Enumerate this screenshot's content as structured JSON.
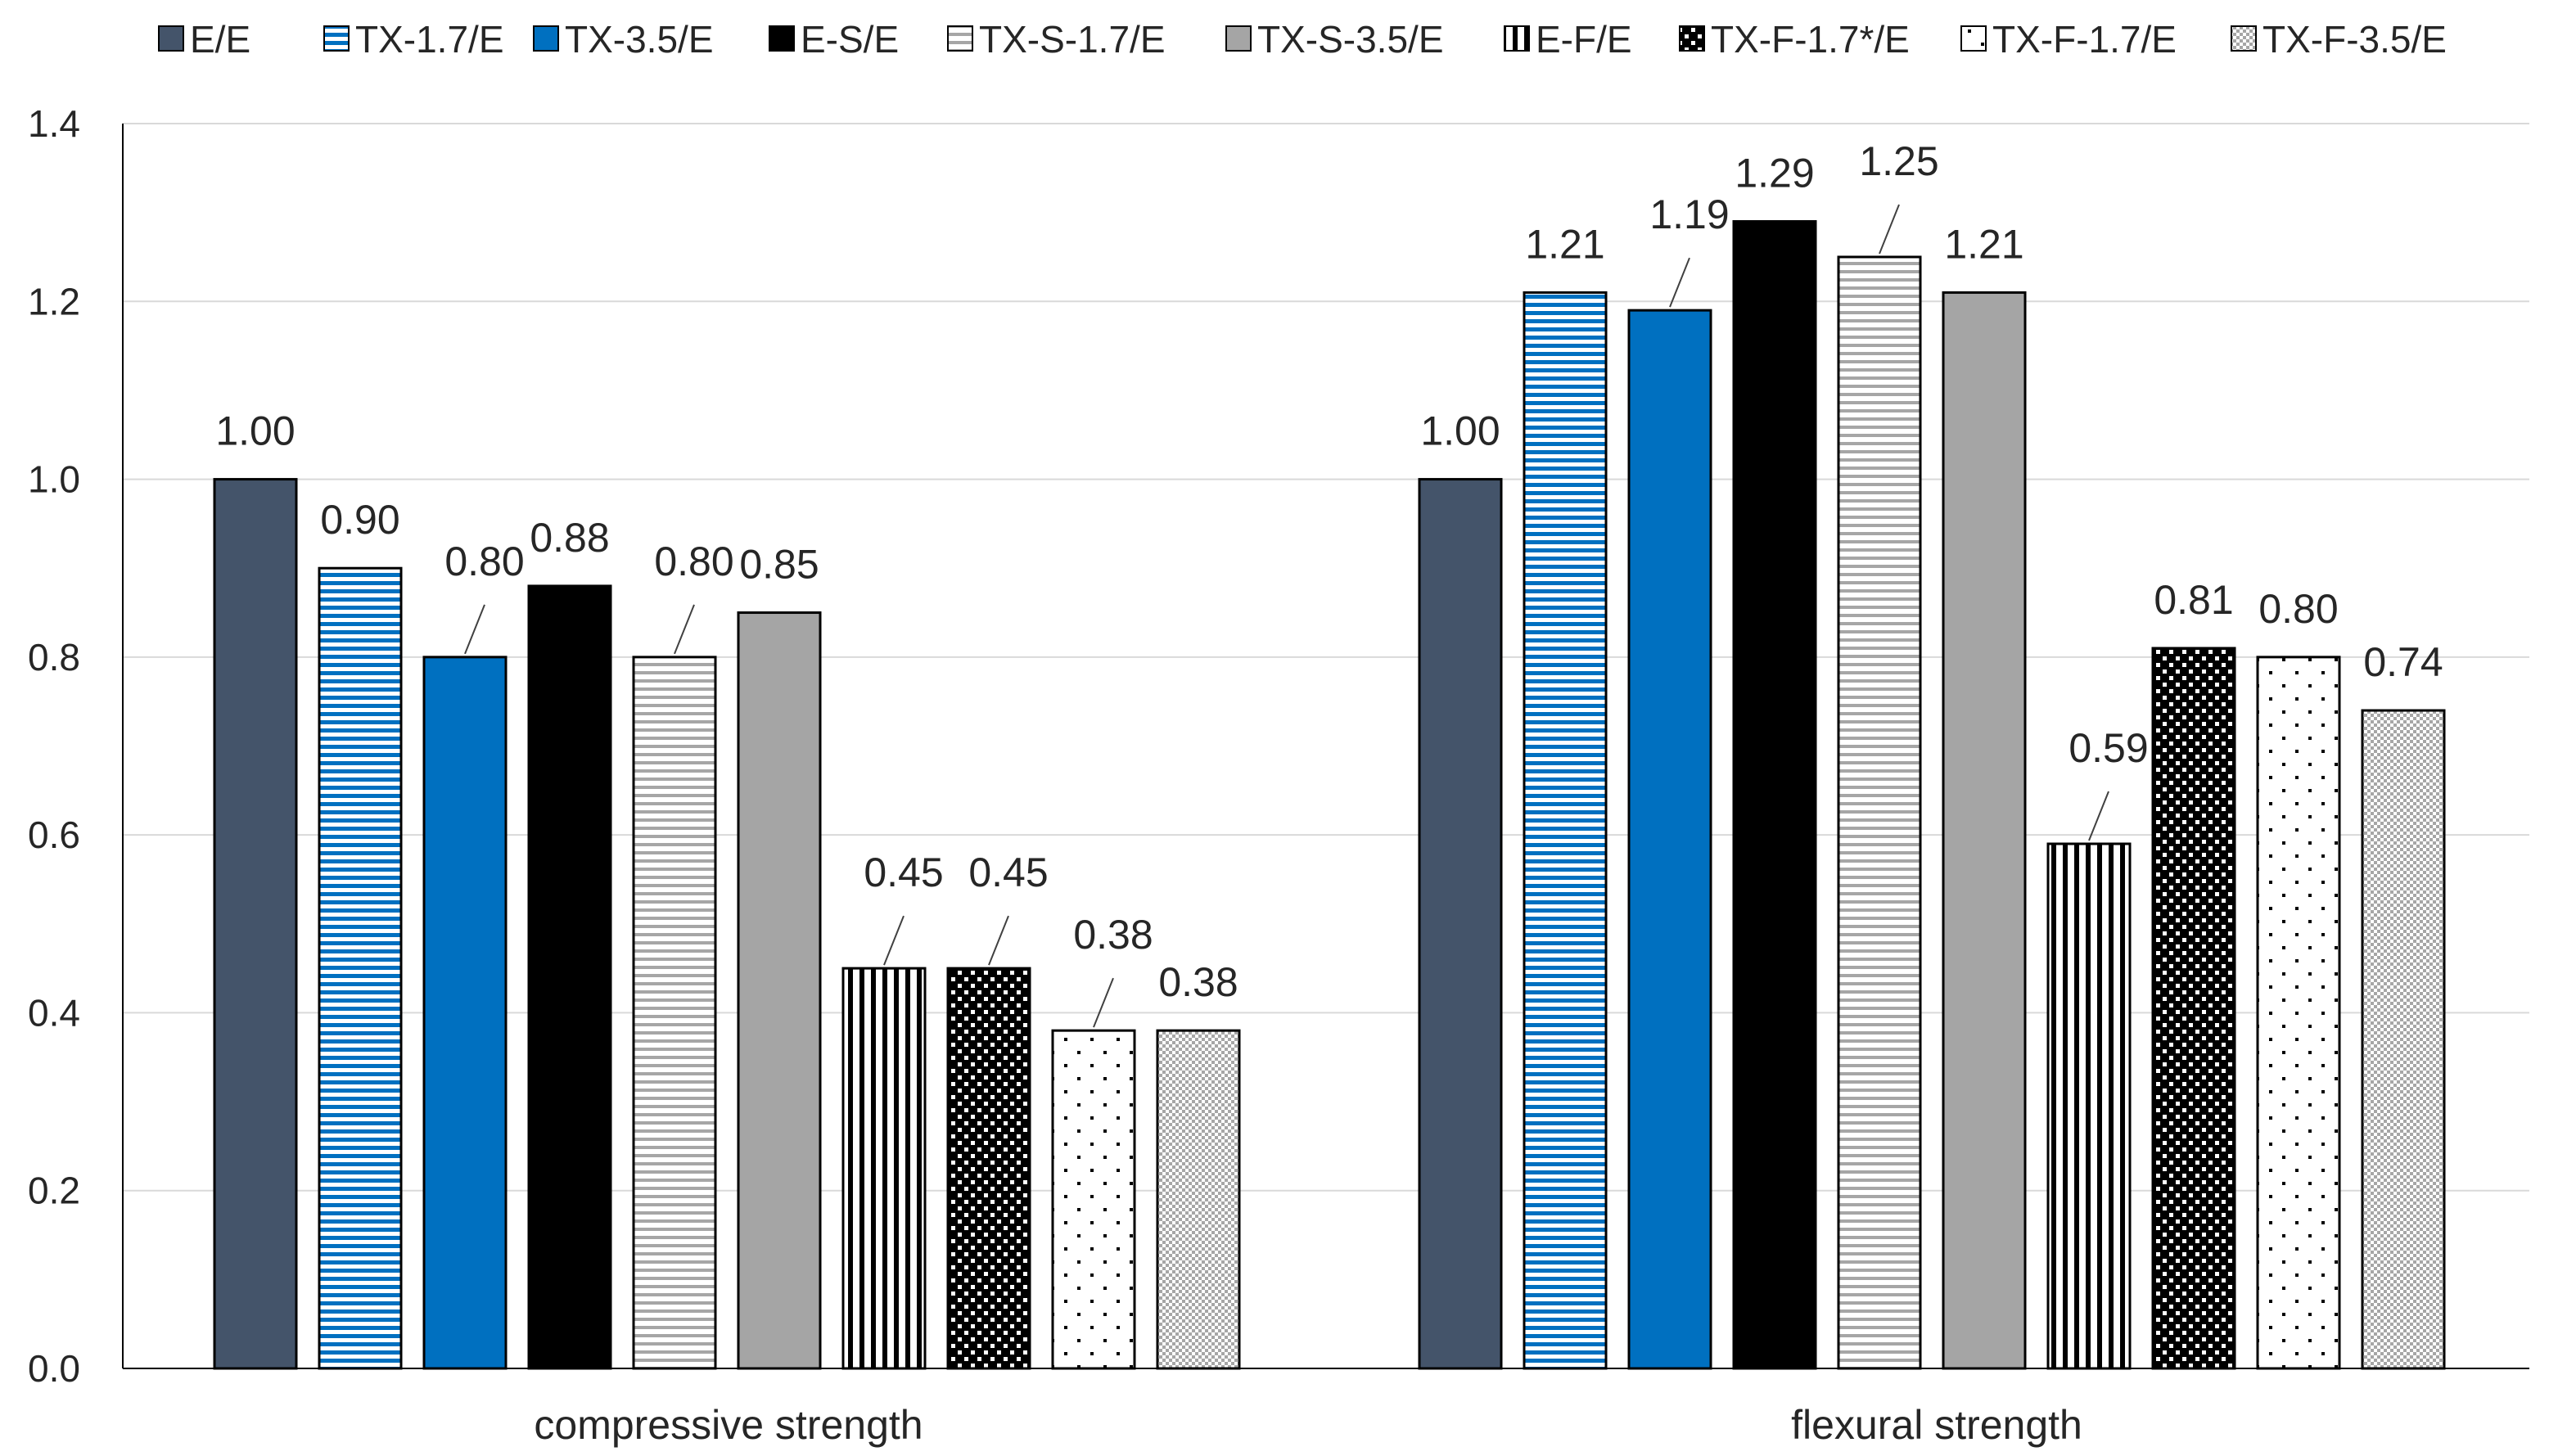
{
  "chart_data": {
    "type": "bar",
    "title": "",
    "xlabel": "",
    "ylabel": "",
    "ylim": [
      0,
      1.4
    ],
    "yticks": [
      0.0,
      0.2,
      0.4,
      0.6,
      0.8,
      1.0,
      1.2,
      1.4
    ],
    "ytick_labels": [
      "0.0",
      "0.2",
      "0.4",
      "0.6",
      "0.8",
      "1.0",
      "1.2",
      "1.4"
    ],
    "grid": true,
    "legend_position": "top",
    "categories": [
      "compressive strength",
      "flexural strength"
    ],
    "series": [
      {
        "name": "E/E",
        "values": [
          1.0,
          1.0
        ],
        "labels": [
          "1.00",
          "1.00"
        ],
        "color": "#44546a",
        "pattern": "solid"
      },
      {
        "name": "TX-1.7/E",
        "values": [
          0.9,
          1.21
        ],
        "labels": [
          "0.90",
          "1.21"
        ],
        "color": "#0070c0",
        "pattern": "h-lines"
      },
      {
        "name": "TX-3.5/E",
        "values": [
          0.8,
          1.19
        ],
        "labels": [
          "0.80",
          "1.19"
        ],
        "color": "#0070c0",
        "pattern": "solid"
      },
      {
        "name": "E-S/E",
        "values": [
          0.88,
          1.29
        ],
        "labels": [
          "0.88",
          "1.29"
        ],
        "color": "#000000",
        "pattern": "solid"
      },
      {
        "name": "TX-S-1.7/E",
        "values": [
          0.8,
          1.25
        ],
        "labels": [
          "0.80",
          "1.25"
        ],
        "color": "#a6a6a6",
        "pattern": "h-lines"
      },
      {
        "name": "TX-S-3.5/E",
        "values": [
          0.85,
          1.21
        ],
        "labels": [
          "0.85",
          "1.21"
        ],
        "color": "#a5a5a5",
        "pattern": "solid"
      },
      {
        "name": "E-F/E",
        "values": [
          0.45,
          0.59
        ],
        "labels": [
          "0.45",
          "0.59"
        ],
        "color": "#000000",
        "pattern": "v-lines"
      },
      {
        "name": "TX-F-1.7*/E",
        "values": [
          0.45,
          0.81
        ],
        "labels": [
          "0.45",
          "0.81"
        ],
        "color": "#000000",
        "pattern": "dark-dots"
      },
      {
        "name": "TX-F-1.7/E",
        "values": [
          0.38,
          0.8
        ],
        "labels": [
          "0.38",
          "0.80"
        ],
        "color": "#000000",
        "pattern": "sparse-dots"
      },
      {
        "name": "TX-F-3.5/E",
        "values": [
          0.38,
          0.74
        ],
        "labels": [
          "0.38",
          "0.74"
        ],
        "color": "#a6a6a6",
        "pattern": "fine-dots"
      }
    ]
  }
}
